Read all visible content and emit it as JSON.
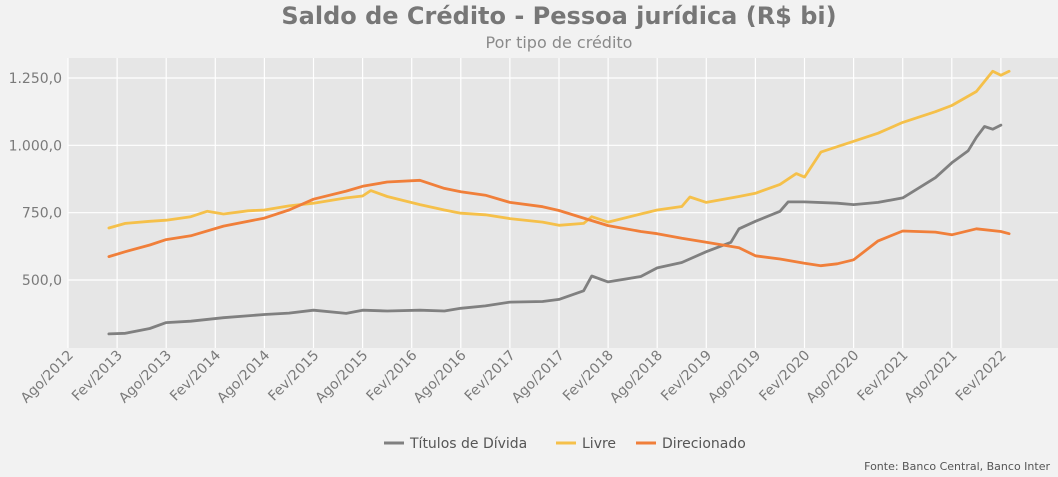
{
  "chart_data": {
    "type": "line",
    "title": "Saldo de Crédito - Pessoa jurídica (R$ bi)",
    "subtitle": "Por tipo de crédito",
    "source": "Fonte: Banco Central, Banco Inter",
    "xlabel": "",
    "ylabel": "",
    "ylim": [
      225,
      1300
    ],
    "yticks": [
      500,
      750,
      1000,
      1250
    ],
    "ytick_labels": [
      "500,0",
      "750,0",
      "1.000,0",
      "1.250,0"
    ],
    "grid": true,
    "legend_position": "bottom",
    "x_start": "Ago/2012",
    "x_end": "Fev/2022",
    "xtick_labels": [
      "Ago/2012",
      "Fev/2013",
      "Ago/2013",
      "Fev/2014",
      "Ago/2014",
      "Fev/2015",
      "Ago/2015",
      "Fev/2016",
      "Ago/2016",
      "Fev/2017",
      "Ago/2017",
      "Fev/2018",
      "Ago/2018",
      "Fev/2019",
      "Ago/2019",
      "Fev/2020",
      "Ago/2020",
      "Fev/2021",
      "Ago/2021",
      "Fev/2022"
    ],
    "series": [
      {
        "name": "Títulos de Dívida",
        "color": "#808080",
        "points": [
          [
            "Jan/2013",
            300
          ],
          [
            "Mar/2013",
            302
          ],
          [
            "Jun/2013",
            320
          ],
          [
            "Ago/2013",
            342
          ],
          [
            "Nov/2013",
            347
          ],
          [
            "Mar/2014",
            360
          ],
          [
            "Ago/2014",
            372
          ],
          [
            "Nov/2014",
            377
          ],
          [
            "Fev/2015",
            388
          ],
          [
            "Jun/2015",
            376
          ],
          [
            "Ago/2015",
            388
          ],
          [
            "Nov/2015",
            385
          ],
          [
            "Mar/2016",
            388
          ],
          [
            "Jun/2016",
            385
          ],
          [
            "Ago/2016",
            395
          ],
          [
            "Nov/2016",
            404
          ],
          [
            "Fev/2017",
            418
          ],
          [
            "Jun/2017",
            420
          ],
          [
            "Ago/2017",
            428
          ],
          [
            "Nov/2017",
            460
          ],
          [
            "Dez/2017",
            515
          ],
          [
            "Fev/2018",
            493
          ],
          [
            "Jun/2018",
            513
          ],
          [
            "Ago/2018",
            545
          ],
          [
            "Nov/2018",
            565
          ],
          [
            "Fev/2019",
            605
          ],
          [
            "Mai/2019",
            640
          ],
          [
            "Jun/2019",
            690
          ],
          [
            "Ago/2019",
            718
          ],
          [
            "Nov/2019",
            755
          ],
          [
            "Dez/2019",
            790
          ],
          [
            "Fev/2020",
            790
          ],
          [
            "Jun/2020",
            785
          ],
          [
            "Ago/2020",
            780
          ],
          [
            "Nov/2020",
            788
          ],
          [
            "Fev/2021",
            805
          ],
          [
            "Jun/2021",
            880
          ],
          [
            "Ago/2021",
            935
          ],
          [
            "Out/2021",
            980
          ],
          [
            "Nov/2021",
            1030
          ],
          [
            "Dez/2021",
            1070
          ],
          [
            "Jan/2022",
            1060
          ],
          [
            "Fev/2022",
            1075
          ]
        ]
      },
      {
        "name": "Livre",
        "color": "#f5c04a",
        "points": [
          [
            "Jan/2013",
            693
          ],
          [
            "Mar/2013",
            710
          ],
          [
            "Jun/2013",
            718
          ],
          [
            "Ago/2013",
            722
          ],
          [
            "Nov/2013",
            735
          ],
          [
            "Jan/2014",
            755
          ],
          [
            "Mar/2014",
            745
          ],
          [
            "Jun/2014",
            757
          ],
          [
            "Ago/2014",
            760
          ],
          [
            "Nov/2014",
            775
          ],
          [
            "Fev/2015",
            785
          ],
          [
            "Jun/2015",
            805
          ],
          [
            "Ago/2015",
            812
          ],
          [
            "Set/2015",
            832
          ],
          [
            "Nov/2015",
            810
          ],
          [
            "Mar/2016",
            780
          ],
          [
            "Jun/2016",
            760
          ],
          [
            "Ago/2016",
            748
          ],
          [
            "Nov/2016",
            742
          ],
          [
            "Fev/2017",
            728
          ],
          [
            "Jun/2017",
            715
          ],
          [
            "Ago/2017",
            703
          ],
          [
            "Nov/2017",
            710
          ],
          [
            "Dez/2017",
            735
          ],
          [
            "Fev/2018",
            715
          ],
          [
            "Jun/2018",
            745
          ],
          [
            "Ago/2018",
            760
          ],
          [
            "Nov/2018",
            773
          ],
          [
            "Dez/2018",
            808
          ],
          [
            "Fev/2019",
            788
          ],
          [
            "Jun/2019",
            810
          ],
          [
            "Ago/2019",
            822
          ],
          [
            "Nov/2019",
            855
          ],
          [
            "Jan/2020",
            895
          ],
          [
            "Fev/2020",
            882
          ],
          [
            "Abr/2020",
            975
          ],
          [
            "Jun/2020",
            995
          ],
          [
            "Ago/2020",
            1015
          ],
          [
            "Nov/2020",
            1045
          ],
          [
            "Fev/2021",
            1085
          ],
          [
            "Jun/2021",
            1125
          ],
          [
            "Ago/2021",
            1148
          ],
          [
            "Nov/2021",
            1200
          ],
          [
            "Jan/2022",
            1275
          ],
          [
            "Fev/2022",
            1260
          ],
          [
            "Mar/2022",
            1275
          ]
        ]
      },
      {
        "name": "Direcionado",
        "color": "#f07f3a",
        "points": [
          [
            "Jan/2013",
            587
          ],
          [
            "Mar/2013",
            605
          ],
          [
            "Jun/2013",
            630
          ],
          [
            "Ago/2013",
            650
          ],
          [
            "Nov/2013",
            664
          ],
          [
            "Mar/2014",
            700
          ],
          [
            "Ago/2014",
            730
          ],
          [
            "Nov/2014",
            760
          ],
          [
            "Fev/2015",
            800
          ],
          [
            "Jun/2015",
            830
          ],
          [
            "Ago/2015",
            848
          ],
          [
            "Nov/2015",
            864
          ],
          [
            "Mar/2016",
            870
          ],
          [
            "Jun/2016",
            840
          ],
          [
            "Ago/2016",
            828
          ],
          [
            "Nov/2016",
            815
          ],
          [
            "Fev/2017",
            788
          ],
          [
            "Jun/2017",
            772
          ],
          [
            "Ago/2017",
            758
          ],
          [
            "Nov/2017",
            730
          ],
          [
            "Fev/2018",
            702
          ],
          [
            "Jun/2018",
            680
          ],
          [
            "Ago/2018",
            672
          ],
          [
            "Nov/2018",
            655
          ],
          [
            "Fev/2019",
            640
          ],
          [
            "Jun/2019",
            620
          ],
          [
            "Ago/2019",
            590
          ],
          [
            "Nov/2019",
            578
          ],
          [
            "Fev/2020",
            562
          ],
          [
            "Abr/2020",
            553
          ],
          [
            "Jun/2020",
            560
          ],
          [
            "Ago/2020",
            575
          ],
          [
            "Nov/2020",
            645
          ],
          [
            "Fev/2021",
            682
          ],
          [
            "Jun/2021",
            678
          ],
          [
            "Ago/2021",
            668
          ],
          [
            "Nov/2021",
            690
          ],
          [
            "Fev/2022",
            680
          ],
          [
            "Mar/2022",
            672
          ]
        ]
      }
    ]
  }
}
